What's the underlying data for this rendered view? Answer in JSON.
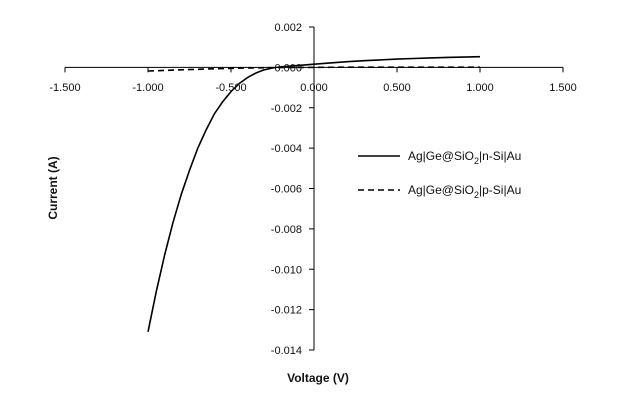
{
  "chart_data": {
    "type": "line",
    "title": "",
    "xlabel": "Voltage (V)",
    "ylabel": "Current (A)",
    "xlim": [
      -1.5,
      1.5
    ],
    "ylim": [
      -0.014,
      0.002
    ],
    "grid": false,
    "legend_position": "right",
    "x_ticks": [
      "-1.500",
      "-1.000",
      "-0.500",
      "0.000",
      "0.500",
      "1.000",
      "1.500"
    ],
    "y_ticks": [
      "0.002",
      "0.000",
      "-0.002",
      "-0.004",
      "-0.006",
      "-0.008",
      "-0.010",
      "-0.012",
      "-0.014"
    ],
    "series": [
      {
        "name": "n-Si",
        "label_prefix": "Ag|Ge@SiO",
        "label_sub": "2",
        "label_suffix": "|n-Si|Au",
        "style": "solid",
        "points": [
          [
            -1.0,
            -0.0131
          ],
          [
            -0.95,
            -0.0111
          ],
          [
            -0.9,
            -0.0093
          ],
          [
            -0.85,
            -0.0077
          ],
          [
            -0.8,
            -0.0063
          ],
          [
            -0.75,
            -0.0051
          ],
          [
            -0.7,
            -0.004
          ],
          [
            -0.65,
            -0.0031
          ],
          [
            -0.6,
            -0.0023
          ],
          [
            -0.55,
            -0.0017
          ],
          [
            -0.5,
            -0.0012
          ],
          [
            -0.45,
            -0.0008
          ],
          [
            -0.4,
            -0.0005
          ],
          [
            -0.35,
            -0.00028
          ],
          [
            -0.3,
            -0.00012
          ],
          [
            -0.25,
            -3e-05
          ],
          [
            -0.2,
            3e-05
          ],
          [
            -0.1,
            9e-05
          ],
          [
            0.0,
            0.00016
          ],
          [
            0.1,
            0.00022
          ],
          [
            0.2,
            0.00028
          ],
          [
            0.3,
            0.00033
          ],
          [
            0.4,
            0.00037
          ],
          [
            0.5,
            0.00041
          ],
          [
            0.6,
            0.00044
          ],
          [
            0.7,
            0.00047
          ],
          [
            0.8,
            0.00049
          ],
          [
            0.9,
            0.00051
          ],
          [
            1.0,
            0.00053
          ]
        ]
      },
      {
        "name": "p-Si",
        "label_prefix": "Ag|Ge@SiO",
        "label_sub": "2",
        "label_suffix": "|p-Si|Au",
        "style": "dashed",
        "points": [
          [
            -1.0,
            -0.00018
          ],
          [
            -0.8,
            -0.00012
          ],
          [
            -0.6,
            -7e-05
          ],
          [
            -0.4,
            -3e-05
          ],
          [
            -0.2,
            -1e-05
          ],
          [
            0.0,
            0.0
          ],
          [
            0.2,
            1e-05
          ],
          [
            0.4,
            1e-05
          ],
          [
            0.6,
            1e-05
          ],
          [
            0.8,
            1e-05
          ],
          [
            1.0,
            1e-05
          ]
        ]
      }
    ]
  }
}
